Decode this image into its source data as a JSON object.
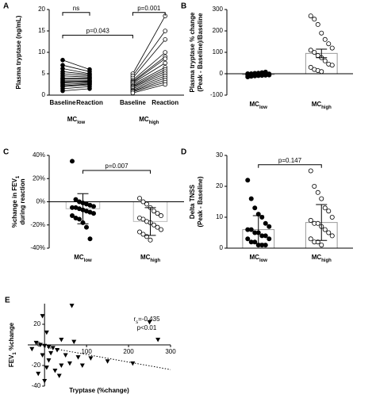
{
  "chart_data": [
    {
      "type": "paired",
      "panel": "A",
      "ylabel": [
        [
          {
            "t": "Plasma tryptase (ng/mL)"
          }
        ]
      ],
      "categories": [
        "Baseline",
        "Reaction",
        "Baseline",
        "Reaction"
      ],
      "ylim": [
        0,
        20
      ],
      "yticks": [
        0,
        5,
        10,
        15,
        20
      ],
      "groups": [
        {
          "label": [
            {
              "t": "MC"
            },
            {
              "t": "low",
              "sub": true
            }
          ],
          "marker_fill": "#000000",
          "baseline": [
            8.2,
            7.0,
            6.2,
            5.5,
            5.0,
            4.5,
            4.0,
            3.8,
            3.5,
            3.2,
            3.0,
            2.8,
            2.5,
            2.2,
            2.0,
            1.5,
            1.0
          ],
          "reaction": [
            6.0,
            5.5,
            5.0,
            4.8,
            4.5,
            4.2,
            4.0,
            3.8,
            3.5,
            3.3,
            3.0,
            3.2,
            2.8,
            2.6,
            2.4,
            2.0,
            1.5
          ]
        },
        {
          "label": [
            {
              "t": "MC"
            },
            {
              "t": "high",
              "sub": true
            }
          ],
          "marker_fill": "#ffffff",
          "baseline": [
            5.0,
            4.5,
            4.0,
            3.5,
            3.2,
            3.0,
            2.8,
            2.5,
            2.2,
            2.0,
            1.8,
            1.5,
            1.2,
            1.0,
            0.8,
            0.5
          ],
          "reaction": [
            18.5,
            15.0,
            13.0,
            10.0,
            9.0,
            8.5,
            7.5,
            6.5,
            6.0,
            5.5,
            5.0,
            4.5,
            4.0,
            3.5,
            3.0,
            2.5
          ]
        }
      ],
      "brackets": [
        {
          "label": "ns"
        },
        {
          "label": "p=0.001"
        },
        {
          "label": "p=0.043"
        }
      ]
    },
    {
      "type": "bar-dot",
      "panel": "B",
      "ylabel": [
        [
          {
            "t": "Plasma tryptase % change"
          }
        ],
        [
          {
            "t": "(Peak - Baseline)/Baseline"
          }
        ]
      ],
      "categories": [
        [
          {
            "t": "MC"
          },
          {
            "t": "low",
            "sub": true
          }
        ],
        [
          {
            "t": "MC"
          },
          {
            "t": "high",
            "sub": true
          }
        ]
      ],
      "ylim": [
        -100,
        300
      ],
      "yticks": [
        -100,
        0,
        100,
        200,
        300
      ],
      "values": [
        -4,
        95
      ],
      "errors": [
        3,
        20
      ],
      "bar_fill": "#ffffff",
      "bar_stroke": "#999999",
      "point_fill": [
        "#000000",
        "#ffffff"
      ],
      "points": [
        [
          -15,
          -12,
          -10,
          -9,
          -8,
          -7,
          -6,
          -5,
          -5,
          -4,
          -3,
          -3,
          -2,
          -1,
          0,
          0,
          2,
          3,
          5,
          8
        ],
        [
          270,
          255,
          230,
          190,
          160,
          140,
          120,
          110,
          100,
          85,
          75,
          60,
          45,
          40,
          30,
          20,
          15,
          10
        ]
      ],
      "brackets": []
    },
    {
      "type": "bar-dot",
      "panel": "C",
      "ylabel": [
        [
          {
            "t": "%change in FEV"
          },
          {
            "t": "1",
            "sub": true
          }
        ],
        [
          {
            "t": "during reaction"
          }
        ]
      ],
      "categories": [
        [
          {
            "t": "MC"
          },
          {
            "t": "low",
            "sub": true
          }
        ],
        [
          {
            "t": "MC"
          },
          {
            "t": "high",
            "sub": true
          }
        ]
      ],
      "ylim": [
        -40,
        40
      ],
      "yticks": [
        {
          "value": -40,
          "label": "-40%"
        },
        {
          "value": -20,
          "label": "-20%"
        },
        {
          "value": 0,
          "label": "0%"
        },
        {
          "value": 20,
          "label": "20%"
        },
        {
          "value": 40,
          "label": "40%"
        }
      ],
      "values": [
        -6,
        -17
      ],
      "errors": [
        13,
        12
      ],
      "bar_fill": "#ffffff",
      "bar_stroke": "#bbbbbb",
      "point_fill": [
        "#000000",
        "#ffffff"
      ],
      "points": [
        [
          35,
          2,
          0,
          -1,
          -2,
          -3,
          -4,
          -5,
          -5,
          -6,
          -7,
          -8,
          -9,
          -10,
          -12,
          -14,
          -15,
          -18,
          -22,
          -32
        ],
        [
          3,
          0,
          -2,
          -5,
          -8,
          -10,
          -12,
          -14,
          -15,
          -17,
          -18,
          -20,
          -22,
          -24,
          -26,
          -28,
          -30,
          -33
        ]
      ],
      "brackets": [
        {
          "label": "p=0.007"
        }
      ]
    },
    {
      "type": "bar-dot",
      "panel": "D",
      "ylabel": [
        [
          {
            "t": "Delta TNSS"
          }
        ],
        [
          {
            "t": "(Peak - Baseline)"
          }
        ]
      ],
      "categories": [
        [
          {
            "t": "MC"
          },
          {
            "t": "low",
            "sub": true
          }
        ],
        [
          {
            "t": "MC"
          },
          {
            "t": "high",
            "sub": true
          }
        ]
      ],
      "ylim": [
        0,
        30
      ],
      "yticks": [
        0,
        10,
        20,
        30
      ],
      "values": [
        6,
        8.3
      ],
      "errors": [
        4.5,
        5.8
      ],
      "bar_fill": "#ffffff",
      "bar_stroke": "#999999",
      "point_fill": [
        "#000000",
        "#ffffff"
      ],
      "points": [
        [
          22,
          16,
          13,
          11,
          10,
          8,
          7,
          6,
          6,
          5,
          5,
          4,
          4,
          3,
          3,
          2,
          2,
          1,
          1,
          1
        ],
        [
          25,
          20,
          18,
          16,
          13,
          12,
          10,
          9,
          8,
          8,
          7,
          6,
          5,
          4,
          3,
          2,
          2,
          1
        ]
      ],
      "brackets": [
        {
          "label": "p=0.147"
        }
      ]
    },
    {
      "type": "scatter",
      "panel": "E",
      "ylabel": [
        [
          {
            "t": "FEV"
          },
          {
            "t": "1",
            "sub": true
          },
          {
            "t": " %change"
          }
        ]
      ],
      "xlabel": "Tryptase (%change)",
      "xlim": [
        -40,
        300
      ],
      "xticks": [
        100,
        200,
        300
      ],
      "ylim": [
        -40,
        40
      ],
      "yticks": [
        -40,
        -20,
        0,
        20
      ],
      "x": [
        65,
        -5,
        250,
        5,
        40,
        70,
        -20,
        -10,
        0,
        10,
        20,
        30,
        -30,
        15,
        50,
        80,
        110,
        150,
        210,
        40,
        5,
        25,
        -15,
        60,
        90,
        0,
        35,
        270,
        -5,
        10
      ],
      "y": [
        38,
        28,
        22,
        12,
        5,
        3,
        2,
        0,
        -1,
        -2,
        -3,
        -5,
        -4,
        -8,
        -10,
        -12,
        -13,
        -16,
        -18,
        -20,
        -22,
        -25,
        -28,
        -18,
        -20,
        -35,
        -30,
        5,
        -10,
        -15
      ],
      "color": "#000000",
      "trend_line": {
        "x": [
          0,
          300
        ],
        "y": [
          -2,
          -24
        ]
      },
      "annotations": [
        [
          {
            "t": "r"
          },
          {
            "t": "s",
            "sub": true
          },
          {
            "t": "=-0.435"
          }
        ],
        [
          {
            "t": "p<0.01"
          }
        ]
      ]
    }
  ]
}
